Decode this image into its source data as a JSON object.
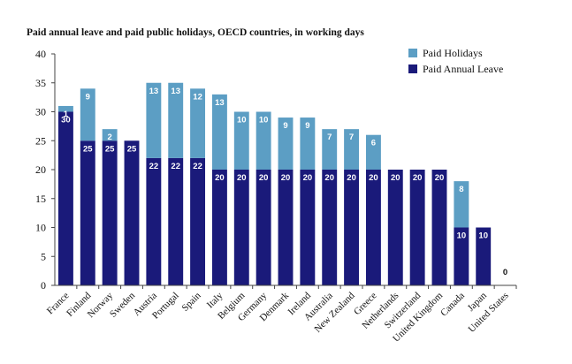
{
  "chart_data": {
    "type": "bar",
    "stacked": true,
    "title": "Paid annual leave and paid public holidays, OECD countries, in working days",
    "xlabel": "",
    "ylabel": "",
    "ylim": [
      0,
      40
    ],
    "yticks": [
      0,
      5,
      10,
      15,
      20,
      25,
      30,
      35,
      40
    ],
    "grid": false,
    "legend_position": "top-right",
    "categories": [
      "France",
      "Finland",
      "Norway",
      "Sweden",
      "Austria",
      "Portugal",
      "Spain",
      "Italy",
      "Belgium",
      "Germany",
      "Denmark",
      "Ireland",
      "Australia",
      "New Zealand",
      "Greece",
      "Netherlands",
      "Switzerland",
      "United Kingdom",
      "Canada",
      "Japan",
      "United States"
    ],
    "series": [
      {
        "name": "Paid Annual Leave",
        "color": "#1a1a7a",
        "values": [
          30,
          25,
          25,
          25,
          22,
          22,
          22,
          20,
          20,
          20,
          20,
          20,
          20,
          20,
          20,
          20,
          20,
          20,
          10,
          10,
          0
        ]
      },
      {
        "name": "Paid Holidays",
        "color": "#5c9ec4",
        "values": [
          1,
          9,
          2,
          0,
          13,
          13,
          12,
          13,
          10,
          10,
          9,
          9,
          7,
          7,
          6,
          0,
          0,
          0,
          8,
          0,
          0
        ]
      }
    ],
    "legend": [
      "Paid Holidays",
      "Paid Annual Leave"
    ]
  }
}
